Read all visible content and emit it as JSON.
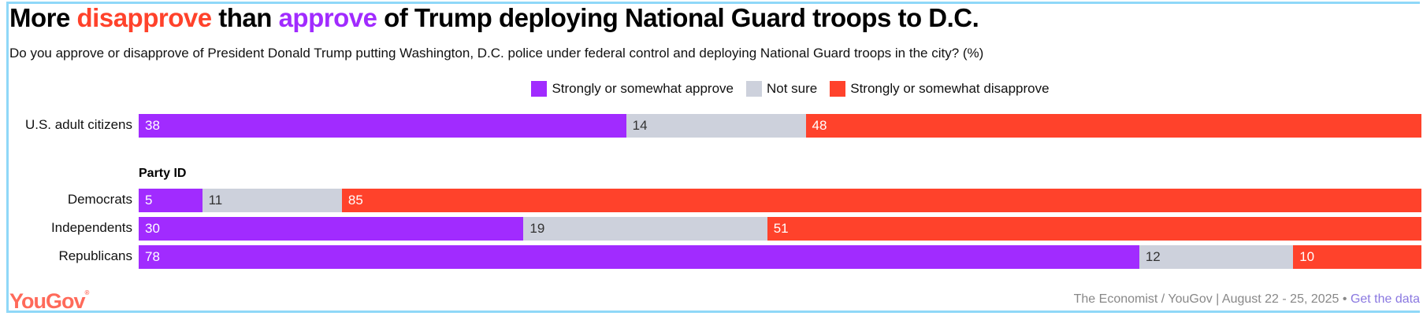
{
  "title": {
    "pre": "More ",
    "disapprove": "disapprove",
    "mid": " than ",
    "approve": "approve",
    "post": " of Trump deploying National Guard troops to D.C."
  },
  "subtitle": "Do you approve or disapprove of President Donald Trump putting Washington, D.C. police under federal control and deploying National Guard troops in the city? (%)",
  "colors": {
    "approve": "#a12bff",
    "not_sure": "#cdd1dc",
    "disapprove": "#ff422b"
  },
  "chart_data": {
    "type": "bar",
    "stacked": true,
    "orientation": "horizontal",
    "unit": "%",
    "legend": [
      "Strongly or somewhat approve",
      "Not sure",
      "Strongly or somewhat disapprove"
    ],
    "legend_position": "top",
    "group_label": "Party ID",
    "categories": [
      "U.S. adult citizens",
      "Democrats",
      "Independents",
      "Republicans"
    ],
    "series": [
      {
        "name": "Strongly or somewhat approve",
        "values": [
          38,
          5,
          30,
          78
        ]
      },
      {
        "name": "Not sure",
        "values": [
          14,
          11,
          19,
          12
        ]
      },
      {
        "name": "Strongly or somewhat disapprove",
        "values": [
          48,
          85,
          51,
          10
        ]
      }
    ]
  },
  "footer": {
    "source": "The Economist / YouGov | August 22 - 25, 2025 • ",
    "link": "Get the data"
  },
  "logo": "YouGov"
}
